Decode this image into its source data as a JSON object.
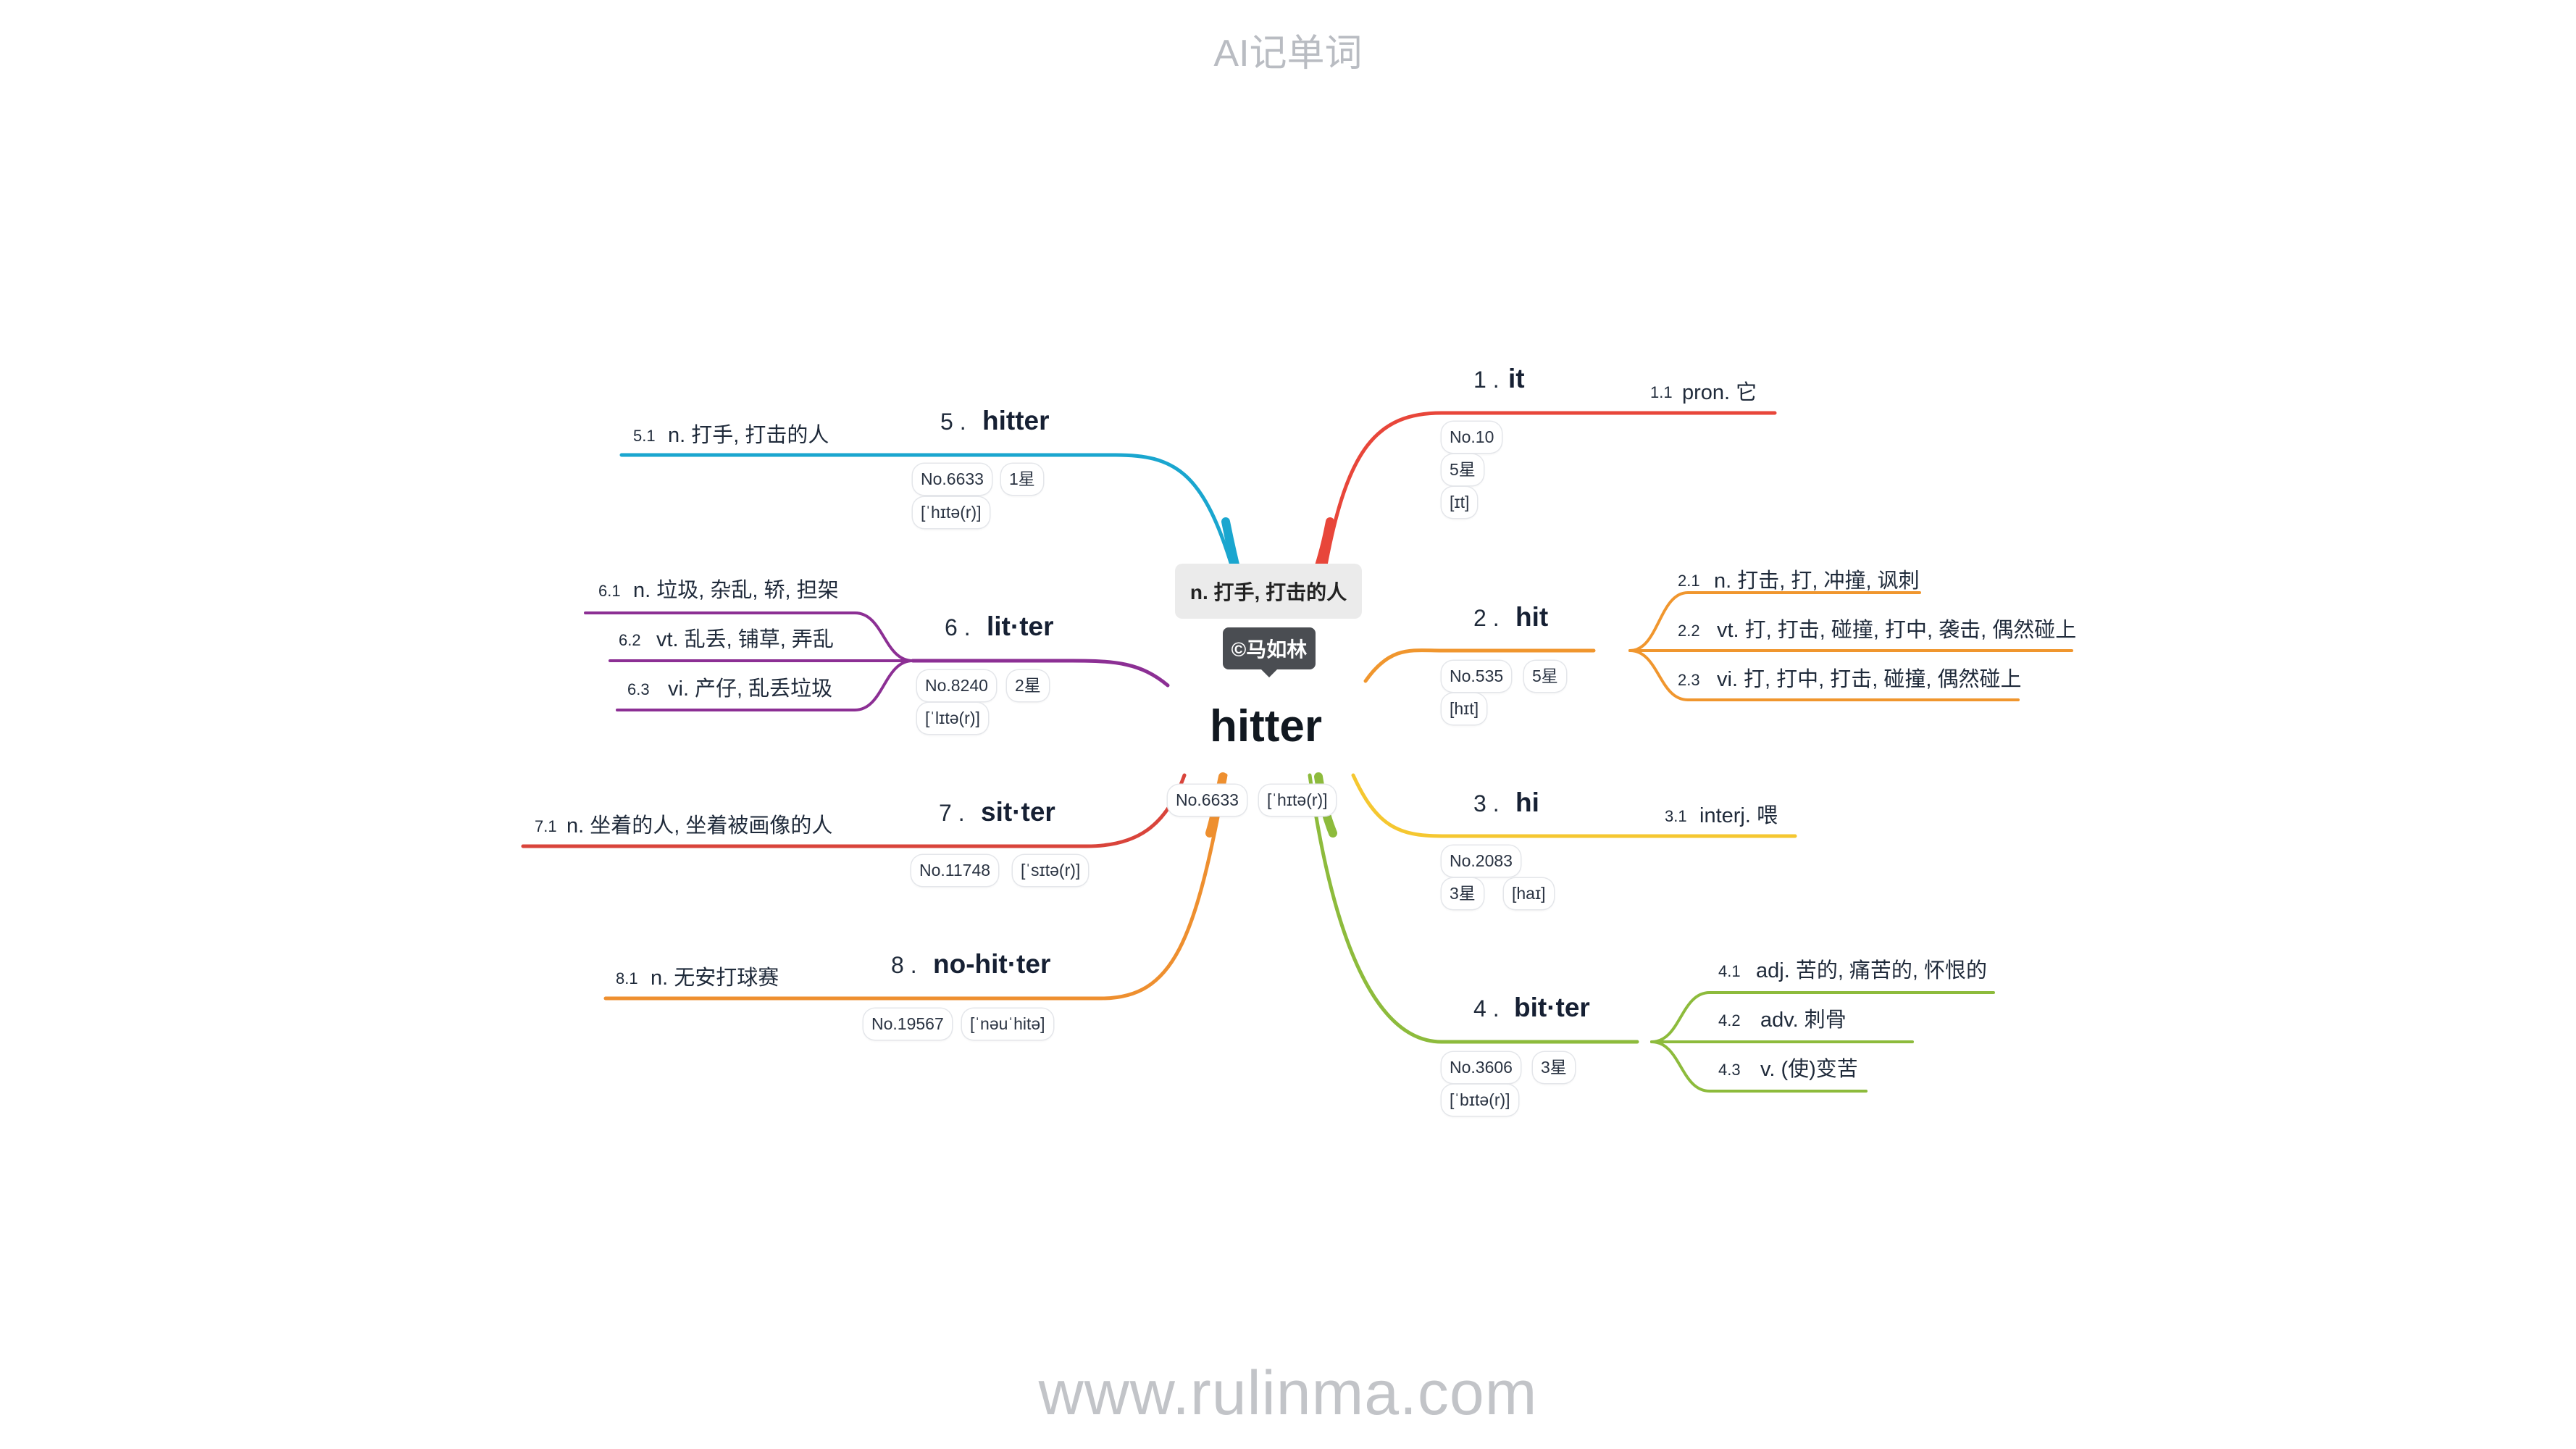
{
  "header": "AI记单词",
  "footer": "www.rulinma.com",
  "center": {
    "word": "hitter",
    "meaning": "n. 打手, 打击的人",
    "watermark": "©马如林",
    "tags": [
      "No.6633",
      "[ˈhɪtə(r)]"
    ]
  },
  "branches": [
    {
      "index": "1 .",
      "word": "it",
      "color": "#e8463a",
      "tags": [
        "No.10",
        "5星",
        "[ɪt]"
      ],
      "defs": [
        {
          "num": "1.1",
          "text": "pron. 它"
        }
      ]
    },
    {
      "index": "2 .",
      "word": "hit",
      "color": "#f0962e",
      "tags": [
        "No.535",
        "5星",
        "[hɪt]"
      ],
      "defs": [
        {
          "num": "2.1",
          "text": "n. 打击, 打, 冲撞, 讽刺"
        },
        {
          "num": "2.2",
          "text": "vt. 打, 打击, 碰撞, 打中, 袭击, 偶然碰上"
        },
        {
          "num": "2.3",
          "text": "vi. 打, 打中, 打击, 碰撞, 偶然碰上"
        }
      ]
    },
    {
      "index": "3 .",
      "word": "hi",
      "color": "#f5c730",
      "tags": [
        "No.2083",
        "3星",
        "[haɪ]"
      ],
      "defs": [
        {
          "num": "3.1",
          "text": "interj. 喂"
        }
      ]
    },
    {
      "index": "4 .",
      "word": "bit·ter",
      "color": "#8dbb3c",
      "tags": [
        "No.3606",
        "3星",
        "[ˈbɪtə(r)]"
      ],
      "defs": [
        {
          "num": "4.1",
          "text": "adj. 苦的, 痛苦的, 怀恨的"
        },
        {
          "num": "4.2",
          "text": "adv. 刺骨"
        },
        {
          "num": "4.3",
          "text": "v. (使)变苦"
        }
      ]
    },
    {
      "index": "5 .",
      "word": "hitter",
      "color": "#1aa6cf",
      "tags": [
        "No.6633",
        "1星",
        "[ˈhɪtə(r)]"
      ],
      "defs": [
        {
          "num": "5.1",
          "text": "n. 打手, 打击的人"
        }
      ]
    },
    {
      "index": "6 .",
      "word": "lit·ter",
      "color": "#8c2f94",
      "tags": [
        "No.8240",
        "2星",
        "[ˈlɪtə(r)]"
      ],
      "defs": [
        {
          "num": "6.1",
          "text": "n. 垃圾, 杂乱, 轿, 担架"
        },
        {
          "num": "6.2",
          "text": "vt. 乱丢, 铺草, 弄乱"
        },
        {
          "num": "6.3",
          "text": "vi. 产仔, 乱丢垃圾"
        }
      ]
    },
    {
      "index": "7 .",
      "word": "sit·ter",
      "color": "#d9443b",
      "tags": [
        "No.11748",
        "[ˈsɪtə(r)]"
      ],
      "defs": [
        {
          "num": "7.1",
          "text": "n. 坐着的人, 坐着被画像的人"
        }
      ]
    },
    {
      "index": "8 .",
      "word": "no-hit·ter",
      "color": "#ee8f2f",
      "tags": [
        "No.19567",
        "[ˈnəuˈhitə]"
      ],
      "defs": [
        {
          "num": "8.1",
          "text": "n. 无安打球赛"
        }
      ]
    }
  ]
}
